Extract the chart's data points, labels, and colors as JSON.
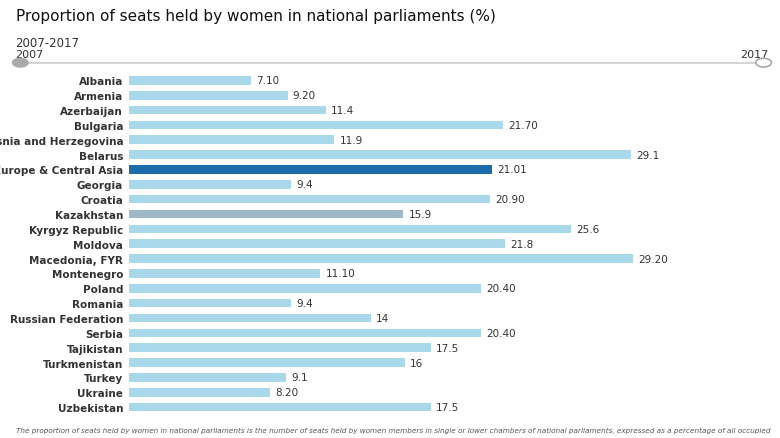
{
  "title": "Proportion of seats held by women in national parliaments (%)",
  "subtitle": "2007-2017",
  "year_left": "2007",
  "year_right": "2017",
  "footnote": "The proportion of seats held by women in national parliaments is the number of seats held by women members in single or lower chambers of national parliaments, expressed as a percentage of all occupied",
  "categories": [
    "Albania",
    "Armenia",
    "Azerbaijan",
    "Bulgaria",
    "Bosnia and Herzegovina",
    "Belarus",
    "Europe & Central Asia",
    "Georgia",
    "Croatia",
    "Kazakhstan",
    "Kyrgyz Republic",
    "Moldova",
    "Macedonia, FYR",
    "Montenegro",
    "Poland",
    "Romania",
    "Russian Federation",
    "Serbia",
    "Tajikistan",
    "Turkmenistan",
    "Turkey",
    "Ukraine",
    "Uzbekistan"
  ],
  "values": [
    7.1,
    9.2,
    11.4,
    21.7,
    11.9,
    29.1,
    21.01,
    9.4,
    20.9,
    15.9,
    25.6,
    21.8,
    29.2,
    11.1,
    20.4,
    9.4,
    14,
    20.4,
    17.5,
    16,
    9.1,
    8.2,
    17.5
  ],
  "labels": [
    "7.10",
    "9.20",
    "11.4",
    "21.70",
    "11.9",
    "29.1",
    "21.01",
    "9.4",
    "20.90",
    "15.9",
    "25.6",
    "21.8",
    "29.20",
    "11.10",
    "20.40",
    "9.4",
    "14",
    "20.40",
    "17.5",
    "16",
    "9.1",
    "8.20",
    "17.5"
  ],
  "bar_colors": [
    "#a8d8ea",
    "#a8d8ea",
    "#a8d8ea",
    "#a8d8ea",
    "#a8d8ea",
    "#a8d8ea",
    "#1b6ca8",
    "#a8d8ea",
    "#a8d8ea",
    "#9eb8c8",
    "#a8d8ea",
    "#a8d8ea",
    "#a8d8ea",
    "#a8d8ea",
    "#a8d8ea",
    "#a8d8ea",
    "#a8d8ea",
    "#a8d8ea",
    "#a8d8ea",
    "#a8d8ea",
    "#a8d8ea",
    "#a8d8ea",
    "#a8d8ea"
  ],
  "bg_color": "#ffffff",
  "bar_height": 0.58,
  "xlim": [
    0,
    35
  ],
  "label_fontsize": 7.5,
  "title_fontsize": 11,
  "tick_fontsize": 7.5
}
